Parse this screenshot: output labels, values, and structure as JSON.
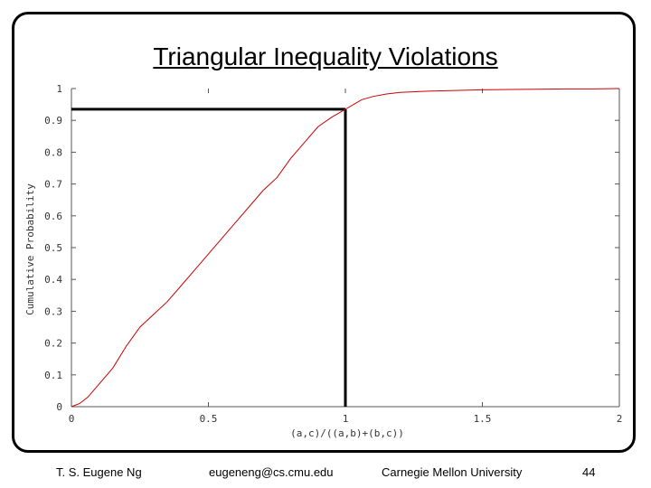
{
  "slide": {
    "title": "Triangular Inequality Violations",
    "footer": {
      "author": "T. S. Eugene Ng",
      "email": "eugeneng@cs.cmu.edu",
      "institution": "Carnegie Mellon University",
      "page_number": "44"
    }
  },
  "colors": {
    "curve": "#cc0000",
    "marker": "#000000",
    "axis": "#555555"
  },
  "chart_data": {
    "type": "line",
    "title": "",
    "xlabel": "(a,c)/((a,b)+(b,c))",
    "ylabel": "Cumulative Probability",
    "xlim": [
      0,
      2
    ],
    "ylim": [
      0,
      1
    ],
    "grid": false,
    "x_ticks": [
      0,
      0.5,
      1,
      1.5,
      2
    ],
    "x_tick_labels": [
      "0",
      "0.5",
      "1",
      "1.5",
      "2"
    ],
    "y_ticks": [
      0,
      0.1,
      0.2,
      0.3,
      0.4,
      0.5,
      0.6,
      0.7,
      0.8,
      0.9,
      1
    ],
    "y_tick_labels": [
      "0",
      "0.1",
      "0.2",
      "0.3",
      "0.4",
      "0.5",
      "0.6",
      "0.7",
      "0.8",
      "0.9",
      "1"
    ],
    "series": [
      {
        "x": [
          0,
          0.03,
          0.06,
          0.1,
          0.15,
          0.2,
          0.25,
          0.3,
          0.35,
          0.4,
          0.45,
          0.5,
          0.55,
          0.6,
          0.65,
          0.7,
          0.75,
          0.8,
          0.85,
          0.9,
          0.95,
          1.0,
          1.03,
          1.06,
          1.1,
          1.15,
          1.2,
          1.3,
          1.4,
          1.5,
          1.6,
          1.7,
          1.8,
          1.9,
          2.0
        ],
        "y": [
          0,
          0.01,
          0.03,
          0.07,
          0.12,
          0.19,
          0.25,
          0.29,
          0.33,
          0.38,
          0.43,
          0.48,
          0.53,
          0.58,
          0.63,
          0.68,
          0.72,
          0.78,
          0.83,
          0.88,
          0.91,
          0.935,
          0.95,
          0.965,
          0.975,
          0.983,
          0.988,
          0.992,
          0.994,
          0.996,
          0.997,
          0.998,
          0.999,
          0.999,
          1.0
        ]
      }
    ],
    "markers": {
      "vertical_x": 1,
      "horizontal_y": 0.935
    }
  }
}
